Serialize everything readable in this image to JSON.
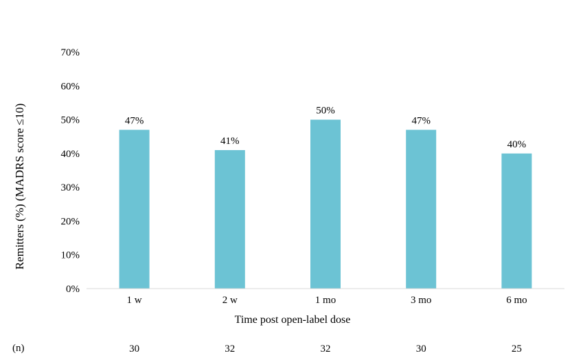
{
  "chart_data": {
    "type": "bar",
    "categories": [
      "1 w",
      "2 w",
      "1 mo",
      "3 mo",
      "6 mo"
    ],
    "values": [
      47,
      41,
      50,
      47,
      40
    ],
    "data_labels": [
      "47%",
      "41%",
      "50%",
      "47%",
      "40%"
    ],
    "ylim": [
      0,
      70
    ],
    "yticks": [
      0,
      10,
      20,
      30,
      40,
      50,
      60,
      70
    ],
    "ytick_labels": [
      "0%",
      "10%",
      "20%",
      "30%",
      "40%",
      "50%",
      "60%",
      "70%"
    ],
    "xlabel": "Time post open-label dose",
    "ylabel": "Remitters (%) (MADRS score ≤10)",
    "n_label": "(n)",
    "n_values": [
      "30",
      "32",
      "32",
      "30",
      "25"
    ],
    "grid": false,
    "legend": "none",
    "bar_color": "#6CC3D4",
    "axis_color": "#D9D9D9"
  }
}
